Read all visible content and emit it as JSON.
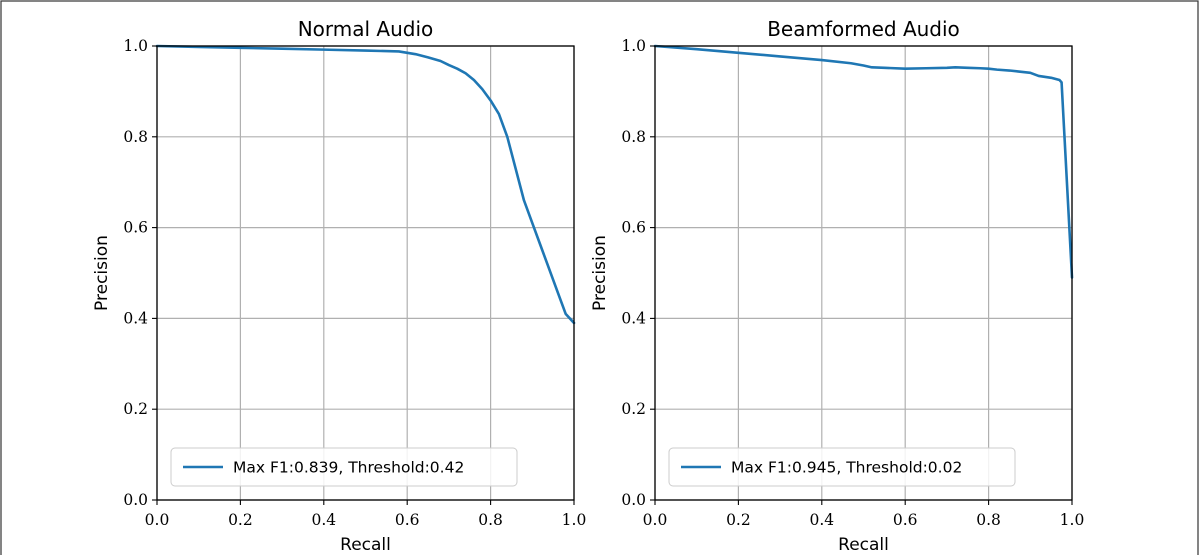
{
  "chart_data": [
    {
      "type": "line",
      "title": "Normal Audio",
      "xlabel": "Recall",
      "ylabel": "Precision",
      "xlim": [
        0,
        1
      ],
      "ylim": [
        0,
        1
      ],
      "xticks": [
        "0.0",
        "0.2",
        "0.4",
        "0.6",
        "0.8",
        "1.0"
      ],
      "yticks": [
        "0.0",
        "0.2",
        "0.4",
        "0.6",
        "0.8",
        "1.0"
      ],
      "grid": true,
      "legend_position": "lower-left",
      "series": [
        {
          "name": "Max F1:0.839, Threshold:0.42",
          "color": "#1f77b4",
          "x": [
            0.0,
            0.1,
            0.2,
            0.3,
            0.4,
            0.5,
            0.58,
            0.62,
            0.65,
            0.68,
            0.7,
            0.72,
            0.74,
            0.76,
            0.78,
            0.8,
            0.82,
            0.84,
            0.86,
            0.88,
            0.9,
            0.92,
            0.94,
            0.96,
            0.98,
            1.0
          ],
          "y": [
            1.0,
            0.998,
            0.996,
            0.994,
            0.992,
            0.99,
            0.988,
            0.982,
            0.975,
            0.967,
            0.958,
            0.95,
            0.94,
            0.925,
            0.905,
            0.88,
            0.85,
            0.8,
            0.73,
            0.66,
            0.61,
            0.56,
            0.51,
            0.46,
            0.41,
            0.39
          ]
        }
      ]
    },
    {
      "type": "line",
      "title": "Beamformed Audio",
      "xlabel": "Recall",
      "ylabel": "Precision",
      "xlim": [
        0,
        1
      ],
      "ylim": [
        0,
        1
      ],
      "xticks": [
        "0.0",
        "0.2",
        "0.4",
        "0.6",
        "0.8",
        "1.0"
      ],
      "yticks": [
        "0.0",
        "0.2",
        "0.4",
        "0.6",
        "0.8",
        "1.0"
      ],
      "grid": true,
      "legend_position": "lower-left",
      "series": [
        {
          "name": "Max F1:0.945, Threshold:0.02",
          "color": "#1f77b4",
          "x": [
            0.0,
            0.1,
            0.2,
            0.3,
            0.4,
            0.47,
            0.5,
            0.52,
            0.55,
            0.6,
            0.65,
            0.7,
            0.72,
            0.75,
            0.78,
            0.8,
            0.82,
            0.85,
            0.87,
            0.9,
            0.92,
            0.95,
            0.97,
            0.975,
            1.0
          ],
          "y": [
            1.0,
            0.993,
            0.985,
            0.977,
            0.969,
            0.962,
            0.957,
            0.953,
            0.952,
            0.95,
            0.951,
            0.952,
            0.953,
            0.952,
            0.951,
            0.95,
            0.948,
            0.946,
            0.944,
            0.941,
            0.934,
            0.93,
            0.925,
            0.92,
            0.49
          ]
        }
      ]
    }
  ]
}
